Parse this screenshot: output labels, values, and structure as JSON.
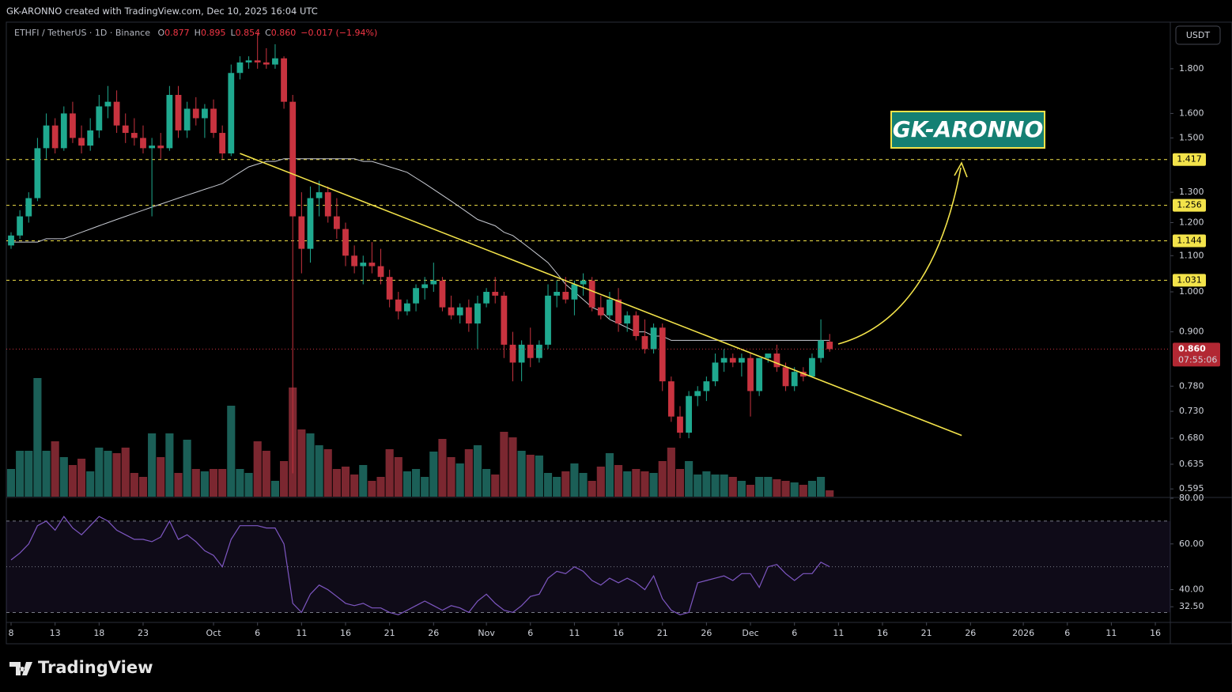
{
  "header": "GK-ARONNO created with TradingView.com, Dec 10, 2025 16:04 UTC",
  "footer": "TradingView",
  "chart_data": {
    "type": "candlestick",
    "symbol": "ETHFI / TetherUS · 1D · Binance",
    "legend": [
      {
        "k": "O",
        "v": "0.877"
      },
      {
        "k": "H",
        "v": "0.895"
      },
      {
        "k": "L",
        "v": "0.854"
      },
      {
        "k": "C",
        "v": "0.860"
      }
    ],
    "change": "−0.017 (−1.94%)",
    "currency": "USDT",
    "colors": {
      "up": "#1fa98f",
      "down": "#c8333f",
      "volume_up": "#1b5f57",
      "volume_down": "#7b2730",
      "ma": "#c8cbd3",
      "level": "#f3e34a",
      "trendline": "#f3e34a",
      "rsi": "#7e57c2"
    },
    "log_scale": true,
    "ylim": [
      0.583,
      2.035
    ],
    "yticks": [
      {
        "value": 1.8,
        "label": "1.800"
      },
      {
        "value": 1.6,
        "label": "1.600"
      },
      {
        "value": 1.5,
        "label": "1.500"
      },
      {
        "value": 1.3,
        "label": "1.300"
      },
      {
        "value": 1.2,
        "label": "1.200"
      },
      {
        "value": 1.1,
        "label": "1.100"
      },
      {
        "value": 1.0,
        "label": "1.000"
      },
      {
        "value": 0.9,
        "label": "0.900"
      },
      {
        "value": 0.78,
        "label": "0.780"
      },
      {
        "value": 0.73,
        "label": "0.730"
      },
      {
        "value": 0.68,
        "label": "0.680"
      },
      {
        "value": 0.635,
        "label": "0.635"
      },
      {
        "value": 0.595,
        "label": "0.595"
      }
    ],
    "xlim": [
      -0.54,
      131.7
    ],
    "xticks": [
      {
        "value": 0,
        "label": "8"
      },
      {
        "value": 5,
        "label": "13"
      },
      {
        "value": 10,
        "label": "18"
      },
      {
        "value": 15,
        "label": "23"
      },
      {
        "value": 23,
        "label": "Oct"
      },
      {
        "value": 28,
        "label": "6"
      },
      {
        "value": 33,
        "label": "11"
      },
      {
        "value": 38,
        "label": "16"
      },
      {
        "value": 43,
        "label": "21"
      },
      {
        "value": 48,
        "label": "26"
      },
      {
        "value": 54,
        "label": "Nov"
      },
      {
        "value": 59,
        "label": "6"
      },
      {
        "value": 64,
        "label": "11"
      },
      {
        "value": 69,
        "label": "16"
      },
      {
        "value": 74,
        "label": "21"
      },
      {
        "value": 79,
        "label": "26"
      },
      {
        "value": 84,
        "label": "Dec"
      },
      {
        "value": 89,
        "label": "6"
      },
      {
        "value": 94,
        "label": "11"
      },
      {
        "value": 99,
        "label": "16"
      },
      {
        "value": 104,
        "label": "21"
      },
      {
        "value": 109,
        "label": "26"
      },
      {
        "value": 115,
        "label": "2026"
      },
      {
        "value": 120,
        "label": "6"
      },
      {
        "value": 125,
        "label": "11"
      },
      {
        "value": 130,
        "label": "16"
      }
    ],
    "open": [
      1.13,
      1.16,
      1.22,
      1.28,
      1.46,
      1.55,
      1.46,
      1.6,
      1.5,
      1.47,
      1.53,
      1.63,
      1.65,
      1.55,
      1.52,
      1.5,
      1.46,
      1.47,
      1.46,
      1.68,
      1.53,
      1.62,
      1.58,
      1.62,
      1.52,
      1.44,
      1.78,
      1.83,
      1.84,
      1.83,
      1.82,
      1.85,
      1.65,
      1.22,
      1.12,
      1.28,
      1.3,
      1.22,
      1.18,
      1.1,
      1.07,
      1.08,
      1.07,
      1.04,
      0.98,
      0.95,
      0.97,
      1.01,
      1.02,
      1.03,
      0.96,
      0.94,
      0.96,
      0.92,
      0.97,
      1.0,
      0.99,
      0.87,
      0.83,
      0.87,
      0.84,
      0.87,
      0.99,
      1.0,
      0.98,
      1.02,
      1.03,
      0.96,
      0.94,
      0.98,
      0.92,
      0.94,
      0.89,
      0.86,
      0.91,
      0.79,
      0.72,
      0.69,
      0.76,
      0.77,
      0.79,
      0.83,
      0.84,
      0.83,
      0.84,
      0.77,
      0.84,
      0.85,
      0.82,
      0.78,
      0.81,
      0.8,
      0.84,
      0.877
    ],
    "high": [
      1.17,
      1.24,
      1.3,
      1.5,
      1.6,
      1.58,
      1.63,
      1.65,
      1.55,
      1.58,
      1.68,
      1.72,
      1.7,
      1.6,
      1.58,
      1.55,
      1.5,
      1.52,
      1.72,
      1.72,
      1.65,
      1.67,
      1.64,
      1.66,
      1.55,
      1.82,
      1.86,
      1.86,
      1.98,
      1.9,
      1.92,
      1.86,
      1.68,
      1.3,
      1.32,
      1.34,
      1.32,
      1.28,
      1.2,
      1.13,
      1.1,
      1.14,
      1.12,
      1.06,
      1.0,
      0.98,
      1.02,
      1.04,
      1.08,
      1.04,
      0.99,
      0.97,
      0.98,
      0.99,
      1.01,
      1.04,
      1.0,
      0.9,
      0.88,
      0.91,
      0.88,
      1.02,
      1.03,
      1.04,
      1.03,
      1.05,
      1.04,
      0.99,
      1.0,
      1.01,
      0.95,
      0.95,
      0.93,
      0.92,
      0.92,
      0.8,
      0.74,
      0.77,
      0.78,
      0.8,
      0.85,
      0.86,
      0.85,
      0.85,
      0.85,
      0.84,
      0.85,
      0.87,
      0.83,
      0.82,
      0.82,
      0.85,
      0.93,
      0.895
    ],
    "low": [
      1.12,
      1.15,
      1.2,
      1.27,
      1.42,
      1.44,
      1.45,
      1.48,
      1.44,
      1.45,
      1.5,
      1.58,
      1.52,
      1.48,
      1.47,
      1.44,
      1.22,
      1.42,
      1.45,
      1.5,
      1.5,
      1.55,
      1.5,
      1.5,
      1.42,
      1.43,
      1.75,
      1.8,
      1.8,
      1.8,
      1.8,
      1.62,
      0.62,
      1.05,
      1.08,
      1.22,
      1.2,
      1.15,
      1.07,
      1.05,
      1.02,
      1.05,
      1.02,
      0.96,
      0.93,
      0.94,
      0.95,
      0.98,
      1.0,
      0.95,
      0.93,
      0.92,
      0.9,
      0.86,
      0.96,
      0.97,
      0.84,
      0.79,
      0.79,
      0.82,
      0.83,
      0.86,
      0.96,
      0.97,
      0.94,
      0.99,
      0.95,
      0.93,
      0.93,
      0.9,
      0.9,
      0.88,
      0.85,
      0.85,
      0.77,
      0.71,
      0.68,
      0.68,
      0.74,
      0.75,
      0.78,
      0.81,
      0.82,
      0.8,
      0.72,
      0.76,
      0.83,
      0.81,
      0.77,
      0.77,
      0.79,
      0.8,
      0.83,
      0.854
    ],
    "close": [
      1.16,
      1.22,
      1.28,
      1.46,
      1.55,
      1.46,
      1.6,
      1.5,
      1.47,
      1.53,
      1.63,
      1.65,
      1.55,
      1.52,
      1.5,
      1.46,
      1.47,
      1.46,
      1.68,
      1.53,
      1.62,
      1.58,
      1.62,
      1.52,
      1.44,
      1.78,
      1.83,
      1.84,
      1.83,
      1.82,
      1.85,
      1.65,
      1.22,
      1.12,
      1.28,
      1.3,
      1.22,
      1.18,
      1.1,
      1.07,
      1.08,
      1.07,
      1.04,
      0.98,
      0.95,
      0.97,
      1.01,
      1.02,
      1.03,
      0.96,
      0.94,
      0.96,
      0.92,
      0.97,
      1.0,
      0.99,
      0.87,
      0.83,
      0.87,
      0.84,
      0.87,
      0.99,
      1.0,
      0.98,
      1.02,
      1.03,
      0.96,
      0.94,
      0.98,
      0.92,
      0.94,
      0.89,
      0.86,
      0.91,
      0.79,
      0.72,
      0.69,
      0.76,
      0.77,
      0.79,
      0.83,
      0.84,
      0.83,
      0.84,
      0.77,
      0.84,
      0.85,
      0.82,
      0.78,
      0.81,
      0.8,
      0.84,
      0.88,
      0.86
    ],
    "ma": [
      1.14,
      1.14,
      1.14,
      1.14,
      1.15,
      1.15,
      1.15,
      1.16,
      1.17,
      1.18,
      1.19,
      1.2,
      1.21,
      1.22,
      1.23,
      1.24,
      1.25,
      1.26,
      1.27,
      1.28,
      1.29,
      1.3,
      1.31,
      1.32,
      1.33,
      1.35,
      1.37,
      1.39,
      1.4,
      1.41,
      1.41,
      1.42,
      1.42,
      1.42,
      1.42,
      1.42,
      1.42,
      1.42,
      1.42,
      1.42,
      1.41,
      1.41,
      1.4,
      1.39,
      1.38,
      1.37,
      1.35,
      1.33,
      1.31,
      1.29,
      1.27,
      1.25,
      1.23,
      1.21,
      1.2,
      1.19,
      1.17,
      1.16,
      1.14,
      1.12,
      1.1,
      1.08,
      1.05,
      1.02,
      1.0,
      0.98,
      0.96,
      0.95,
      0.93,
      0.92,
      0.91,
      0.9,
      0.9,
      0.89,
      0.89,
      0.88,
      0.88,
      0.88,
      0.88,
      0.88,
      0.88,
      0.88,
      0.88,
      0.88,
      0.88,
      0.88,
      0.88,
      0.88,
      0.88,
      0.88,
      0.88,
      0.88,
      0.88,
      0.88
    ],
    "levels": [
      {
        "value": 1.417,
        "label": "1.417"
      },
      {
        "value": 1.256,
        "label": "1.256"
      },
      {
        "value": 1.144,
        "label": "1.144"
      },
      {
        "value": 1.031,
        "label": "1.031"
      }
    ],
    "last_price": {
      "value": 0.86,
      "label": "0.860",
      "countdown": "07:55:06"
    },
    "trendline": {
      "x": [
        26,
        108
      ],
      "y": [
        1.44,
        0.685
      ]
    },
    "annotation": "GK-ARONNO",
    "volume": {
      "ylim": [
        0,
        250
      ],
      "values": [
        35,
        58,
        58,
        150,
        58,
        70,
        50,
        40,
        48,
        32,
        62,
        58,
        55,
        62,
        30,
        25,
        80,
        50,
        80,
        30,
        72,
        35,
        32,
        35,
        35,
        115,
        35,
        30,
        70,
        58,
        20,
        45,
        138,
        85,
        80,
        65,
        60,
        35,
        38,
        28,
        40,
        20,
        25,
        60,
        50,
        32,
        35,
        25,
        57,
        73,
        50,
        42,
        60,
        65,
        35,
        28,
        82,
        75,
        58,
        53,
        52,
        30,
        25,
        32,
        42,
        30,
        20,
        38,
        55,
        40,
        32,
        35,
        32,
        30,
        45,
        62,
        35,
        45,
        28,
        32,
        28,
        28,
        25,
        20,
        15,
        25,
        25,
        22,
        20,
        18,
        15,
        20,
        25,
        8
      ]
    },
    "rsi": {
      "ylim": [
        26,
        80
      ],
      "bands": [
        30,
        50,
        70
      ],
      "yticks": [
        {
          "value": 80,
          "label": "80.00"
        },
        {
          "value": 60,
          "label": "60.00"
        },
        {
          "value": 40,
          "label": "40.00"
        },
        {
          "value": 32.5,
          "label": "32.50"
        }
      ],
      "values": [
        53,
        56,
        60,
        68,
        70,
        66,
        72,
        67,
        64,
        68,
        72,
        70,
        66,
        64,
        62,
        62,
        61,
        63,
        70,
        62,
        64,
        61,
        57,
        55,
        50,
        62,
        68,
        68,
        68,
        67,
        67,
        60,
        34,
        30,
        38,
        42,
        40,
        37,
        34,
        33,
        34,
        32,
        32,
        30,
        29,
        31,
        33,
        35,
        33,
        31,
        33,
        32,
        30,
        35,
        38,
        34,
        31,
        30,
        33,
        37,
        38,
        45,
        48,
        47,
        50,
        48,
        44,
        42,
        45,
        43,
        45,
        43,
        40,
        46,
        36,
        31,
        29,
        30,
        43,
        44,
        45,
        46,
        44,
        47,
        47,
        41,
        50,
        51,
        47,
        44,
        47,
        47,
        52,
        50
      ]
    }
  }
}
